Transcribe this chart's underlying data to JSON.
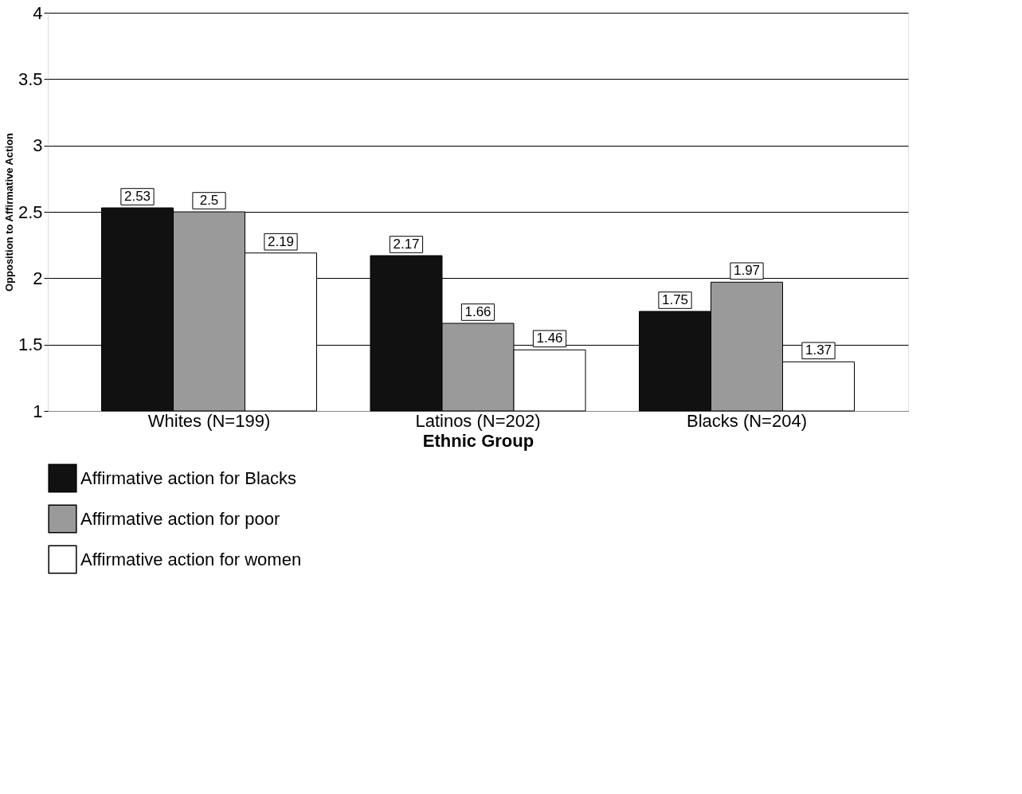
{
  "chart_data": {
    "type": "bar",
    "xlabel": "Ethnic Group",
    "ylabel": "Opposition to Affirmative Action",
    "categories": [
      "Whites (N=199)",
      "Latinos (N=202)",
      "Blacks (N=204)"
    ],
    "series": [
      {
        "name": "Affirmative action for Blacks",
        "color": "#111111",
        "values": [
          2.53,
          2.17,
          1.75
        ]
      },
      {
        "name": "Affirmative action for poor",
        "color": "#9a9a9a",
        "values": [
          2.5,
          1.66,
          1.97
        ]
      },
      {
        "name": "Affirmative action for women",
        "color": "#ffffff",
        "values": [
          2.19,
          1.46,
          1.37
        ]
      }
    ],
    "ylim": [
      1,
      4
    ],
    "yticks": [
      1,
      1.5,
      2,
      2.5,
      3,
      3.5,
      4
    ],
    "grid": "y",
    "legend": "bottom",
    "data_labels": true
  }
}
